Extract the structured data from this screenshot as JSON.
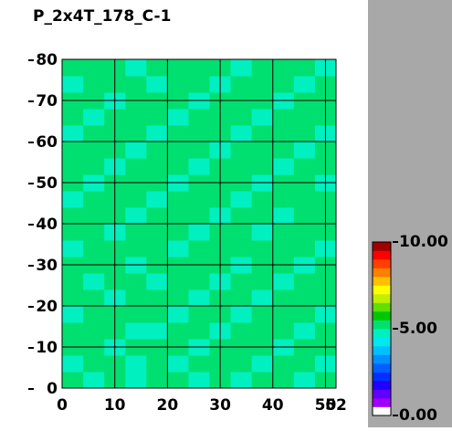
{
  "chart_data": {
    "type": "heatmap",
    "title": "P_2x4T_178_C-1",
    "xlim": [
      0,
      52
    ],
    "ylim": [
      0,
      80
    ],
    "xticks": [
      0,
      10,
      20,
      30,
      40,
      50,
      52
    ],
    "yticks": [
      0,
      10,
      20,
      30,
      40,
      50,
      60,
      70,
      80
    ],
    "grid": true,
    "zlim": [
      0,
      10
    ],
    "zticks": [
      {
        "value": 0,
        "label": "0.00"
      },
      {
        "value": 5,
        "label": "5.00"
      },
      {
        "value": 10,
        "label": "10.00"
      }
    ],
    "colorscale": [
      "#ffffff",
      "#a000ff",
      "#6000ff",
      "#2000ff",
      "#0030ff",
      "#0060ff",
      "#0090ff",
      "#00c0ff",
      "#00e8f0",
      "#00f0c0",
      "#00e070",
      "#00c800",
      "#60e000",
      "#c0f000",
      "#ffff00",
      "#ffc000",
      "#ff8000",
      "#ff4000",
      "#ff0000",
      "#a00000"
    ],
    "z": [
      [
        5.1,
        4.8,
        5.2,
        4.9,
        5.0,
        5.3,
        4.7,
        5.1,
        4.9,
        5.2,
        5.0,
        4.8,
        5.1
      ],
      [
        4.9,
        5.2,
        5.0,
        4.8,
        5.1,
        4.9,
        5.2,
        5.0,
        5.3,
        4.8,
        5.1,
        5.0,
        4.9
      ],
      [
        5.2,
        5.0,
        4.7,
        5.1,
        5.3,
        5.0,
        4.9,
        5.2,
        5.0,
        5.1,
        4.8,
        5.2,
        5.0
      ],
      [
        5.0,
        5.1,
        5.2,
        4.9,
        4.8,
        5.1,
        5.0,
        4.9,
        5.2,
        5.0,
        5.3,
        4.9,
        5.1
      ],
      [
        4.8,
        5.0,
        5.1,
        5.2,
        5.0,
        4.9,
        5.1,
        5.3,
        4.8,
        5.0,
        5.1,
        5.2,
        4.9
      ],
      [
        5.1,
        5.3,
        4.9,
        5.0,
        5.2,
        5.1,
        4.8,
        5.0,
        5.1,
        4.9,
        5.0,
        5.1,
        5.2
      ],
      [
        5.0,
        4.9,
        5.1,
        5.3,
        4.9,
        5.0,
        5.2,
        4.8,
        5.0,
        5.2,
        4.9,
        5.0,
        5.1
      ],
      [
        5.2,
        5.0,
        5.0,
        4.8,
        5.1,
        5.2,
        5.0,
        5.1,
        4.9,
        5.0,
        5.2,
        4.8,
        5.0
      ],
      [
        4.9,
        5.1,
        5.2,
        5.0,
        5.0,
        4.8,
        5.1,
        5.2,
        5.0,
        5.3,
        5.0,
        5.1,
        4.9
      ],
      [
        5.1,
        5.0,
        4.9,
        5.1,
        5.2,
        5.0,
        4.9,
        5.0,
        5.2,
        4.9,
        5.1,
        5.0,
        5.2
      ],
      [
        5.0,
        5.2,
        5.1,
        4.9,
        5.0,
        5.3,
        5.1,
        4.9,
        5.0,
        5.1,
        4.8,
        5.2,
        5.0
      ],
      [
        4.8,
        5.0,
        5.2,
        5.1,
        4.9,
        5.0,
        5.2,
        5.1,
        4.8,
        5.0,
        5.2,
        5.0,
        5.1
      ],
      [
        5.2,
        4.9,
        5.0,
        5.2,
        5.1,
        4.8,
        5.0,
        5.3,
        5.1,
        4.9,
        5.0,
        5.1,
        4.9
      ],
      [
        5.0,
        5.1,
        4.8,
        5.0,
        5.2,
        5.1,
        4.9,
        5.0,
        5.2,
        5.1,
        4.9,
        5.0,
        5.2
      ],
      [
        5.1,
        5.0,
        5.2,
        4.9,
        5.0,
        5.2,
        5.1,
        4.8,
        5.0,
        5.2,
        5.1,
        4.9,
        5.0
      ],
      [
        4.9,
        5.2,
        5.1,
        5.0,
        4.8,
        5.0,
        5.2,
        5.1,
        4.9,
        5.0,
        5.3,
        5.1,
        4.8
      ],
      [
        5.0,
        4.9,
        5.0,
        5.2,
        5.1,
        4.9,
        5.0,
        5.2,
        5.1,
        4.8,
        5.0,
        5.2,
        5.1
      ],
      [
        5.2,
        5.1,
        4.9,
        5.0,
        5.3,
        5.1,
        4.8,
        5.0,
        5.2,
        5.1,
        4.9,
        5.0,
        5.0
      ],
      [
        4.9,
        5.0,
        5.2,
        5.1,
        4.9,
        5.0,
        5.2,
        4.9,
        5.0,
        5.3,
        5.1,
        4.8,
        5.2
      ],
      [
        5.1,
        5.2,
        5.0,
        4.8,
        5.0,
        5.2,
        5.0,
        5.1,
        4.9,
        5.0,
        5.2,
        5.1,
        4.9
      ]
    ]
  }
}
